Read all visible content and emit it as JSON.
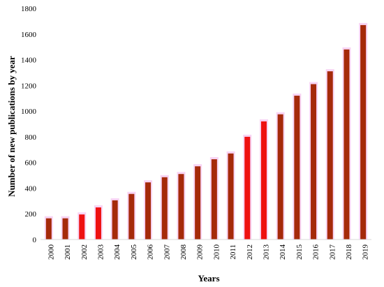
{
  "chart_data": {
    "type": "bar",
    "title": "",
    "xlabel": "Years",
    "ylabel": "Number of new publications by year",
    "categories": [
      "2000",
      "2001",
      "2002",
      "2003",
      "2004",
      "2005",
      "2006",
      "2007",
      "2008",
      "2009",
      "2010",
      "2011",
      "2012",
      "2013",
      "2014",
      "2015",
      "2016",
      "2017",
      "2018",
      "2019"
    ],
    "values": [
      165,
      165,
      195,
      250,
      305,
      355,
      445,
      485,
      510,
      570,
      625,
      670,
      800,
      920,
      975,
      1120,
      1210,
      1310,
      1480,
      1670
    ],
    "ylim": [
      0,
      1800
    ],
    "yticks": [
      0,
      200,
      400,
      600,
      800,
      1000,
      1200,
      1400,
      1600,
      1800
    ],
    "grid": false,
    "legend": "none",
    "colors": {
      "bar_bright": "#ee1111",
      "bar_dark": "#a52a0a",
      "axis": "#d9d9d9",
      "bar_halo": "#f8d4f4"
    }
  }
}
